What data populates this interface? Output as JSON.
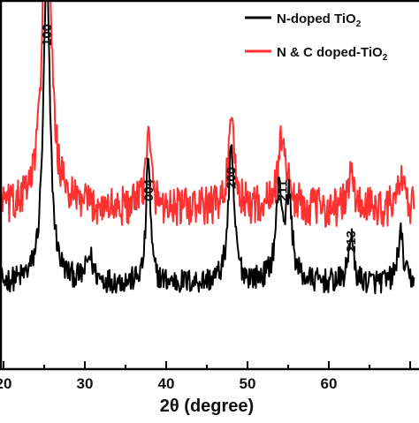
{
  "chart_data": {
    "type": "line",
    "title": "",
    "xlabel": "2θ (degree)",
    "ylabel": "",
    "xlim": [
      20,
      70
    ],
    "x_tick_labels": [
      "20",
      "30",
      "40",
      "50",
      "60"
    ],
    "x_tick_values": [
      20,
      30,
      40,
      50,
      60
    ],
    "grid": false,
    "legend_position": "top-right",
    "series": [
      {
        "name": "N-doped TiO",
        "name_subscript": "2",
        "color": "#000000",
        "baseline": 0.12,
        "peaks": [
          {
            "x": 25.3,
            "height": 0.62,
            "width": 0.5
          },
          {
            "x": 30.6,
            "height": 0.05,
            "width": 0.5
          },
          {
            "x": 37.8,
            "height": 0.26,
            "width": 0.3
          },
          {
            "x": 48.0,
            "height": 0.26,
            "width": 0.45
          },
          {
            "x": 53.9,
            "height": 0.18,
            "width": 0.5
          },
          {
            "x": 55.1,
            "height": 0.16,
            "width": 0.45
          },
          {
            "x": 62.7,
            "height": 0.1,
            "width": 0.35
          },
          {
            "x": 68.8,
            "height": 0.1,
            "width": 0.4
          }
        ],
        "noise": 0.025
      },
      {
        "name": "N & C doped-TiO",
        "name_subscript": "2",
        "color": "#ff3030",
        "baseline": 0.27,
        "peaks": [
          {
            "x": 25.3,
            "height": 0.63,
            "width": 0.65
          },
          {
            "x": 37.8,
            "height": 0.14,
            "width": 0.45
          },
          {
            "x": 48.0,
            "height": 0.16,
            "width": 0.5
          },
          {
            "x": 54.3,
            "height": 0.15,
            "width": 0.6
          },
          {
            "x": 62.7,
            "height": 0.07,
            "width": 0.4
          },
          {
            "x": 68.8,
            "height": 0.06,
            "width": 0.45
          }
        ],
        "noise": 0.04
      }
    ],
    "annotations": [
      {
        "text": "100",
        "x": 25.3
      },
      {
        "text": "004",
        "x": 37.8
      },
      {
        "text": "200",
        "x": 48.0
      },
      {
        "text": "211",
        "x": 54.3
      },
      {
        "text": "213",
        "x": 62.7
      }
    ]
  }
}
